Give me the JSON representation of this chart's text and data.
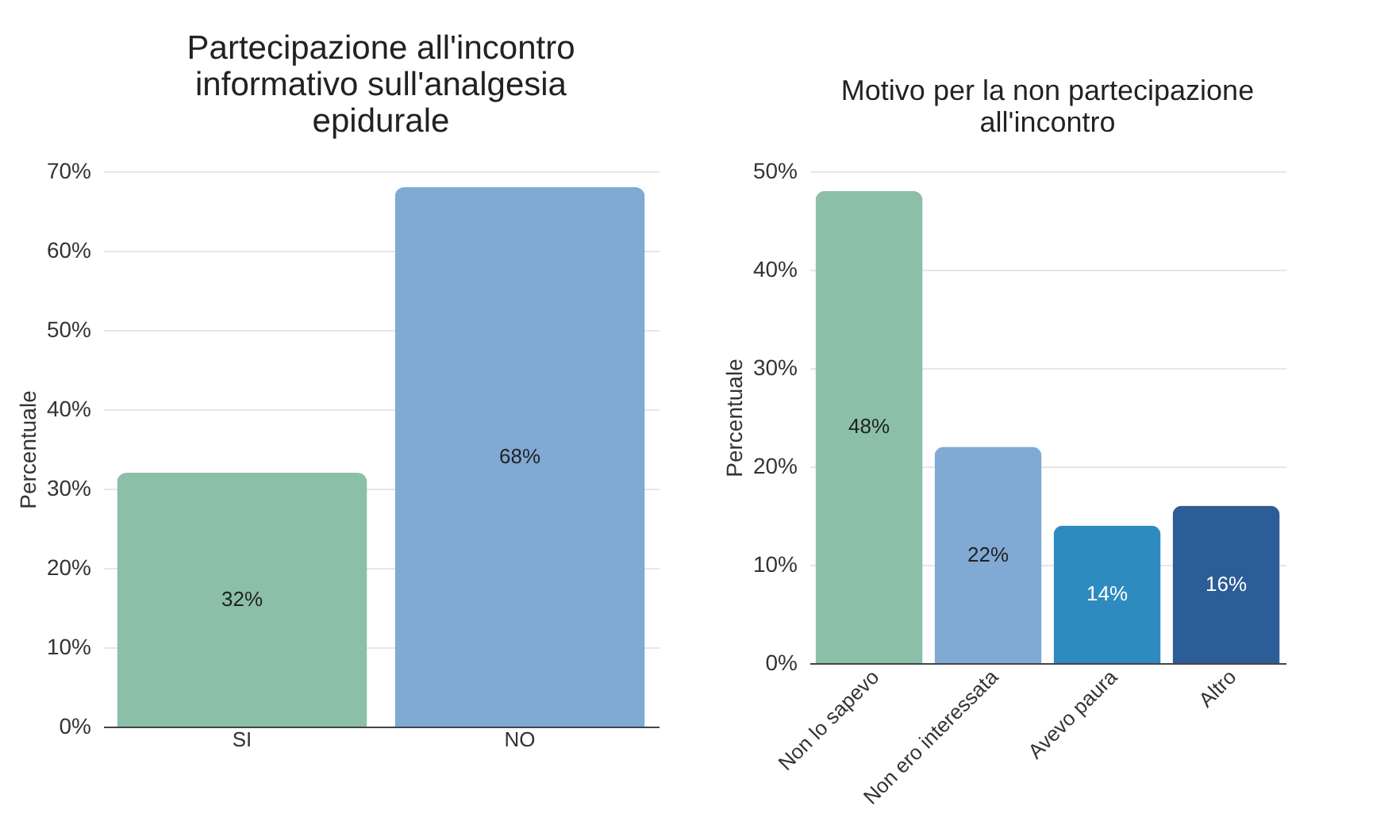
{
  "chart_data": [
    {
      "type": "bar",
      "title": "Partecipazione all'incontro informativo sull'analgesia epidurale",
      "ylabel": "Percentuale",
      "categories": [
        "SI",
        "NO"
      ],
      "values": [
        32,
        68
      ],
      "colors": [
        "#8bbfa8",
        "#80aad4"
      ],
      "value_labels": [
        "32%",
        "68%"
      ],
      "ylim": [
        0,
        70
      ],
      "yticks": [
        {
          "value": 0,
          "label": "0%"
        },
        {
          "value": 10,
          "label": "10%"
        },
        {
          "value": 20,
          "label": "20%"
        },
        {
          "value": 30,
          "label": "30%"
        },
        {
          "value": 40,
          "label": "40%"
        },
        {
          "value": 50,
          "label": "50%"
        },
        {
          "value": 60,
          "label": "60%"
        },
        {
          "value": 70,
          "label": "70%"
        }
      ],
      "grid": "y"
    },
    {
      "type": "bar",
      "title": "Motivo per la non partecipazione all'incontro",
      "ylabel": "Percentuale",
      "categories": [
        "Non lo sapevo",
        "Non ero interessata",
        "Avevo paura",
        "Altro"
      ],
      "values": [
        48,
        22,
        14,
        16
      ],
      "colors": [
        "#8bbfa8",
        "#80aad4",
        "#2e8bc0",
        "#2c5d96"
      ],
      "value_labels": [
        "48%",
        "22%",
        "14%",
        "16%"
      ],
      "ylim": [
        0,
        50
      ],
      "yticks": [
        {
          "value": 0,
          "label": "0%"
        },
        {
          "value": 10,
          "label": "10%"
        },
        {
          "value": 20,
          "label": "20%"
        },
        {
          "value": 30,
          "label": "30%"
        },
        {
          "value": 40,
          "label": "40%"
        },
        {
          "value": 50,
          "label": "50%"
        }
      ],
      "grid": "y"
    }
  ]
}
